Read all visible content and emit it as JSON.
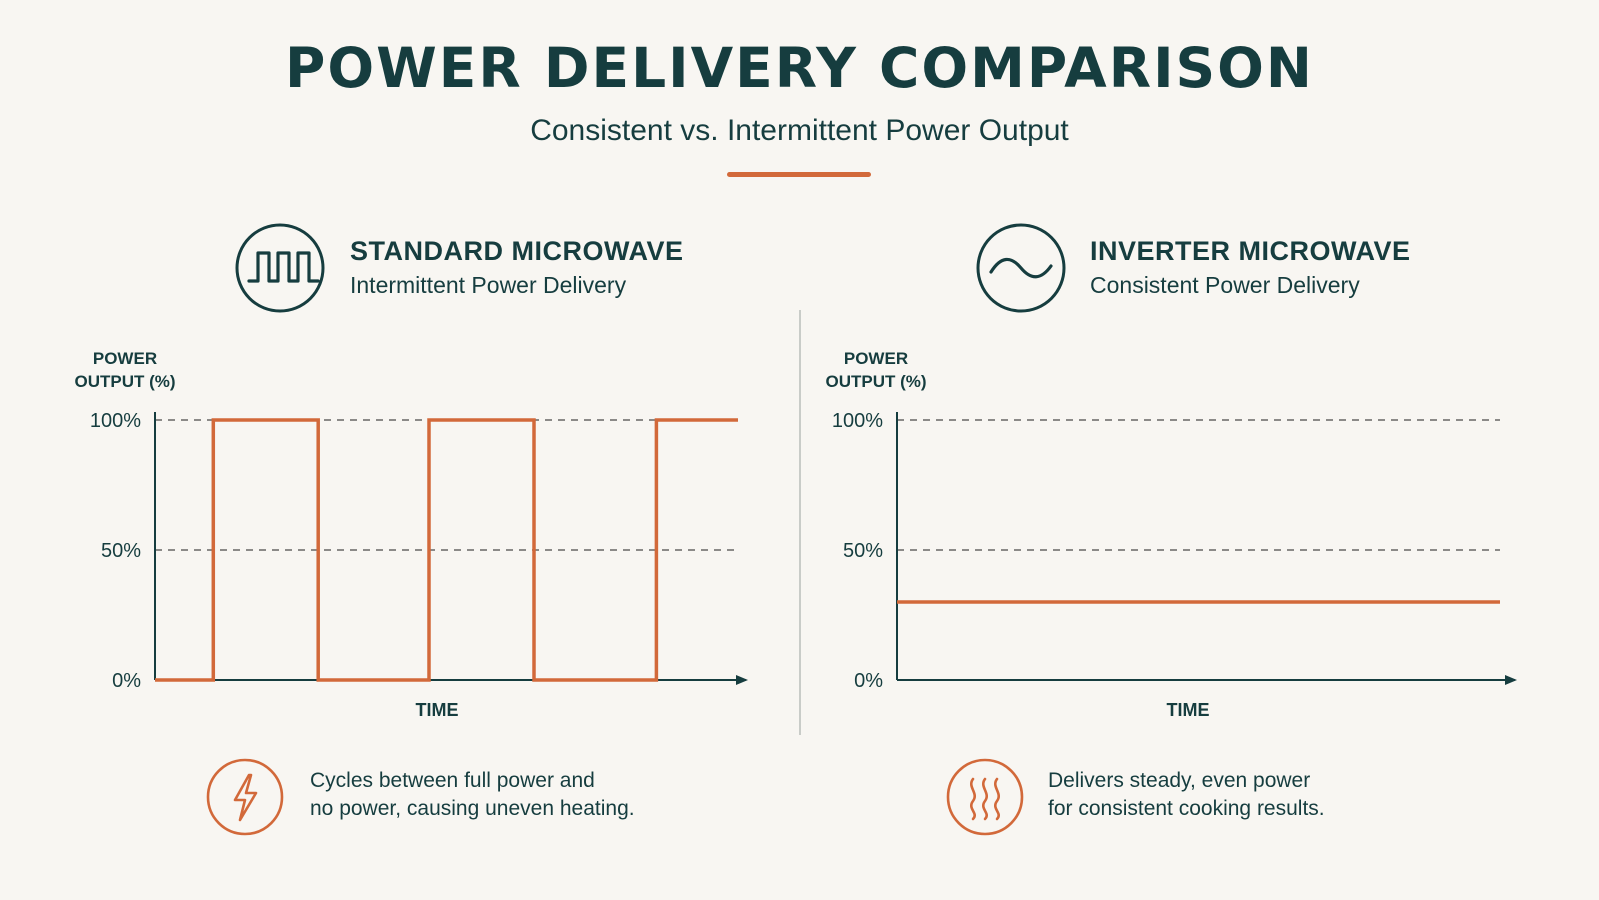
{
  "header": {
    "title": "POWER DELIVERY COMPARISON",
    "subtitle": "Consistent vs. Intermittent Power Output"
  },
  "colors": {
    "accent": "#d2693a",
    "ink": "#163d3f",
    "background": "#f8f6f2",
    "grid": "#4a4a4a"
  },
  "panels": [
    {
      "title": "STANDARD MICROWAVE",
      "subtitle": "Intermittent Power Delivery",
      "icon": "square-wave-icon",
      "note_icon": "lightning-bolt-icon",
      "note": [
        "Cycles between full power and",
        "no power, causing uneven heating."
      ]
    },
    {
      "title": "INVERTER MICROWAVE",
      "subtitle": "Consistent Power Delivery",
      "icon": "sine-wave-icon",
      "note_icon": "heat-waves-icon",
      "note": [
        "Delivers steady, even power",
        "for consistent cooking results."
      ]
    }
  ],
  "chart_data": [
    {
      "type": "line",
      "step": true,
      "ylabel": [
        "POWER",
        "OUTPUT (%)"
      ],
      "xlabel": "TIME",
      "yticks": [
        "100%",
        "50%",
        "0%"
      ],
      "ylim": [
        0,
        100
      ],
      "xlim": [
        0,
        100
      ],
      "gridlines": [
        100,
        50
      ],
      "series": [
        {
          "x": [
            0,
            10,
            10,
            28,
            28,
            47,
            47,
            65,
            65,
            86,
            86,
            100
          ],
          "y": [
            0,
            0,
            100,
            100,
            0,
            0,
            100,
            100,
            0,
            0,
            100,
            100
          ]
        }
      ]
    },
    {
      "type": "line",
      "ylabel": [
        "POWER",
        "OUTPUT (%)"
      ],
      "xlabel": "TIME",
      "yticks": [
        "100%",
        "50%",
        "0%"
      ],
      "ylim": [
        0,
        100
      ],
      "xlim": [
        0,
        100
      ],
      "gridlines": [
        100,
        50
      ],
      "series": [
        {
          "x": [
            0,
            100
          ],
          "y": [
            30,
            30
          ]
        }
      ]
    }
  ]
}
